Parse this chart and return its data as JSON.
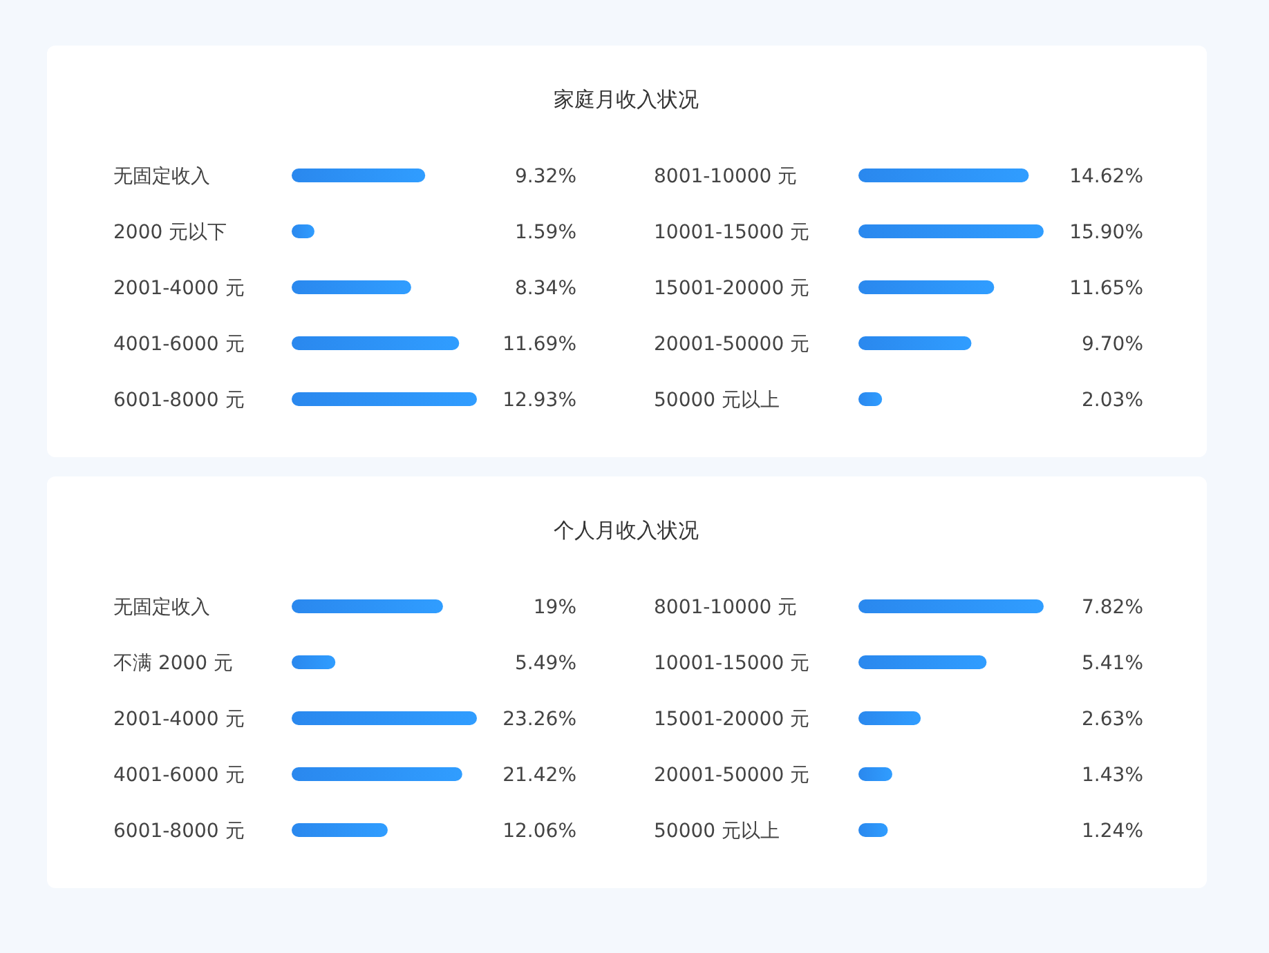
{
  "chart_data": [
    {
      "type": "other",
      "title": "家庭月收入状况"
    },
    {
      "type": "bar",
      "orientation": "horizontal",
      "color": "#2a88ee",
      "categories": [
        "无固定收入",
        "2000 元以下",
        "2001-4000 元",
        "4001-6000 元",
        "6001-8000 元"
      ],
      "values": [
        9.32,
        1.59,
        8.34,
        11.69,
        12.93
      ],
      "value_labels": [
        "9.32%",
        "1.59%",
        "8.34%",
        "11.69%",
        "12.93%"
      ]
    },
    {
      "type": "bar",
      "orientation": "horizontal",
      "color": "#2a88ee",
      "categories": [
        "8001-10000 元",
        "10001-15000 元",
        "15001-20000 元",
        "20001-50000 元",
        "50000 元以上"
      ],
      "values": [
        14.62,
        15.9,
        11.65,
        9.7,
        2.03
      ],
      "value_labels": [
        "14.62%",
        "15.90%",
        "11.65%",
        "9.70%",
        "2.03%"
      ]
    },
    {
      "type": "other",
      "title": "个人月收入状况"
    },
    {
      "type": "bar",
      "orientation": "horizontal",
      "color": "#2a88ee",
      "categories": [
        "无固定收入",
        "不满 2000 元",
        "2001-4000 元",
        "4001-6000 元",
        "6001-8000 元"
      ],
      "values": [
        19,
        5.49,
        23.26,
        21.42,
        12.06
      ],
      "value_labels": [
        "19%",
        "5.49%",
        "23.26%",
        "21.42%",
        "12.06%"
      ]
    },
    {
      "type": "bar",
      "orientation": "horizontal",
      "color": "#2a88ee",
      "categories": [
        "8001-10000 元",
        "10001-15000 元",
        "15001-20000 元",
        "20001-50000 元",
        "50000 元以上"
      ],
      "values": [
        7.82,
        5.41,
        2.63,
        1.43,
        1.24
      ],
      "value_labels": [
        "7.82%",
        "5.41%",
        "2.63%",
        "1.43%",
        "1.24%"
      ]
    }
  ]
}
